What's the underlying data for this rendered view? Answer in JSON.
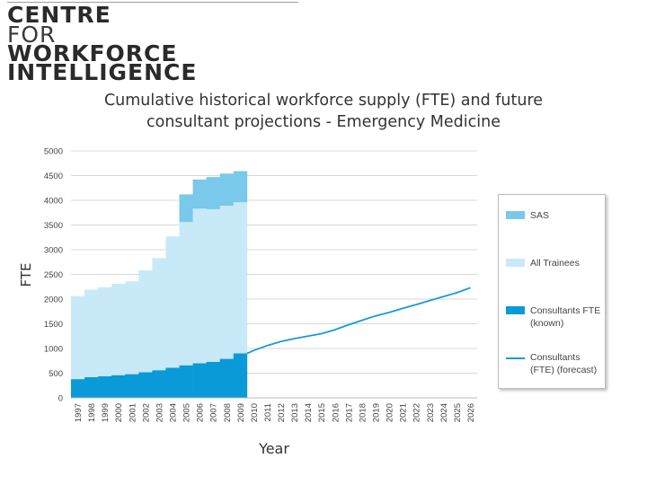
{
  "logo": {
    "lines": [
      "CENTRE",
      "FOR",
      "WORKFORCE",
      "INTELLIGENCE"
    ]
  },
  "chart_data": {
    "type": "area",
    "title_lines": [
      "Cumulative historical workforce supply (FTE) and future",
      "consultant projections - Emergency Medicine"
    ],
    "xlabel": "Year",
    "ylabel": "FTE",
    "ylim": [
      0,
      5000
    ],
    "yticks": [
      0,
      500,
      1000,
      1500,
      2000,
      2500,
      3000,
      3500,
      4000,
      4500,
      5000
    ],
    "x": [
      1997,
      1998,
      1999,
      2000,
      2001,
      2002,
      2003,
      2004,
      2005,
      2006,
      2007,
      2008,
      2009,
      2010,
      2011,
      2012,
      2013,
      2014,
      2015,
      2016,
      2017,
      2018,
      2019,
      2020,
      2021,
      2022,
      2023,
      2024,
      2025,
      2026
    ],
    "grid": true,
    "legend_position": "right",
    "series": [
      {
        "name": "SAS",
        "kind": "stacked-area",
        "color": "#7ac8ea",
        "x": [
          1997,
          1998,
          1999,
          2000,
          2001,
          2002,
          2003,
          2004,
          2005,
          2006,
          2007,
          2008,
          2009
        ],
        "values": [
          0,
          0,
          0,
          0,
          0,
          0,
          0,
          0,
          560,
          590,
          650,
          650,
          630
        ]
      },
      {
        "name": "All Trainees",
        "kind": "stacked-area",
        "color": "#c8e9f8",
        "x": [
          1997,
          1998,
          1999,
          2000,
          2001,
          2002,
          2003,
          2004,
          2005,
          2006,
          2007,
          2008,
          2009
        ],
        "values": [
          1680,
          1770,
          1800,
          1850,
          1880,
          2060,
          2270,
          2660,
          2900,
          3130,
          3090,
          3100,
          3060
        ]
      },
      {
        "name": "Consultants FTE (known)",
        "kind": "stacked-area",
        "color": "#0a9ad8",
        "x": [
          1997,
          1998,
          1999,
          2000,
          2001,
          2002,
          2003,
          2004,
          2005,
          2006,
          2007,
          2008,
          2009
        ],
        "values": [
          380,
          420,
          440,
          460,
          480,
          520,
          560,
          610,
          660,
          700,
          730,
          790,
          900
        ]
      },
      {
        "name": "Consultants (FTE) (forecast)",
        "kind": "line",
        "color": "#1a9ad6",
        "x": [
          2009,
          2010,
          2011,
          2012,
          2013,
          2014,
          2015,
          2016,
          2017,
          2018,
          2019,
          2020,
          2021,
          2022,
          2023,
          2024,
          2025,
          2026
        ],
        "values": [
          900,
          960,
          1060,
          1140,
          1200,
          1250,
          1300,
          1380,
          1480,
          1570,
          1660,
          1730,
          1810,
          1890,
          1970,
          2050,
          2130,
          2230
        ]
      }
    ]
  }
}
